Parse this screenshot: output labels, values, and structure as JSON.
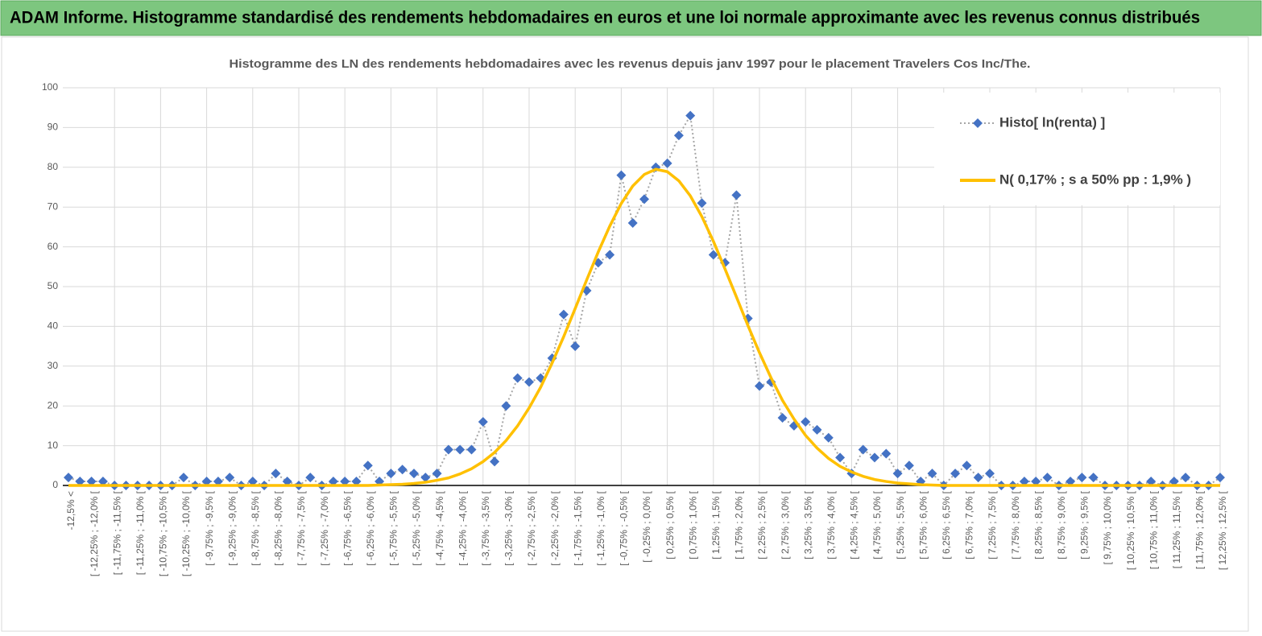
{
  "header": {
    "title": "ADAM Informe. Histogramme standardisé des rendements hebdomadaires en euros et une loi normale approximante avec les revenus connus distribués"
  },
  "chart_data": {
    "type": "line",
    "title": "Histogramme des LN des rendements hebdomadaires avec les revenus depuis janv 1997 pour le placement Travelers Cos Inc/The.",
    "categories": [
      "-12,5% <",
      null,
      "[ -12,25% ; -12,0% [",
      null,
      "[ -11,75% ; -11,5% [",
      null,
      "[ -11,25% ; -11,0% [",
      null,
      "[ -10,75% ; -10,5% [",
      null,
      "[ -10,25% ; -10,0% [",
      null,
      "[ -9,75% ; -9,5% [",
      null,
      "[ -9,25% ; -9,0% [",
      null,
      "[ -8,75% ; -8,5% [",
      null,
      "[ -8,25% ; -8,0% [",
      null,
      "[ -7,75% ; -7,5% [",
      null,
      "[ -7,25% ; -7,0% [",
      null,
      "[ -6,75% ; -6,5% [",
      null,
      "[ -6,25% ; -6,0% [",
      null,
      "[ -5,75% ; -5,5% [",
      null,
      "[ -5,25% ; -5,0% [",
      null,
      "[ -4,75% ; -4,5% [",
      null,
      "[ -4,25% ; -4,0% [",
      null,
      "[ -3,75% ; -3,5% [",
      null,
      "[ -3,25% ; -3,0% [",
      null,
      "[ -2,75% ; -2,5% [",
      null,
      "[ -2,25% ; -2,0% [",
      null,
      "[ -1,75% ; -1,5% [",
      null,
      "[ -1,25% ; -1,0% [",
      null,
      "[ -0,75% ; -0,5% [",
      null,
      "[ -0,25% ; 0,0% [",
      null,
      "[ 0,25% ; 0,5% [",
      null,
      "[ 0,75% ; 1,0% [",
      null,
      "[ 1,25% ; 1,5% [",
      null,
      "[ 1,75% ; 2,0% [",
      null,
      "[ 2,25% ; 2,5% [",
      null,
      "[ 2,75% ; 3,0% [",
      null,
      "[ 3,25% ; 3,5% [",
      null,
      "[ 3,75% ; 4,0% [",
      null,
      "[ 4,25% ; 4,5% [",
      null,
      "[ 4,75% ; 5,0% [",
      null,
      "[ 5,25% ; 5,5% [",
      null,
      "[ 5,75% ; 6,0% [",
      null,
      "[ 6,25% ; 6,5% [",
      null,
      "[ 6,75% ; 7,0% [",
      null,
      "[ 7,25% ; 7,5% [",
      null,
      "[ 7,75% ; 8,0% [",
      null,
      "[ 8,25% ; 8,5% [",
      null,
      "[ 8,75% ; 9,0% [",
      null,
      "[ 9,25% ; 9,5% [",
      null,
      "[ 9,75% ; 10,0% [",
      null,
      "[ 10,25% ; 10,5% [",
      null,
      "[ 10,75% ; 11,0% [",
      null,
      "[ 11,25% ; 11,5% [",
      null,
      "[ 11,75% ; 12,0% [",
      null,
      "[ 12,25% ; 12,5% ["
    ],
    "series": [
      {
        "name": "Histo[ ln(renta) ]",
        "color": "#4472c4",
        "line_color": "#a6a6a6",
        "marker": "diamond",
        "values": [
          2,
          1,
          1,
          1,
          0,
          0,
          0,
          0,
          0,
          0,
          2,
          0,
          1,
          1,
          2,
          0,
          1,
          0,
          3,
          1,
          0,
          2,
          0,
          1,
          1,
          1,
          5,
          1,
          3,
          4,
          3,
          2,
          3,
          9,
          9,
          9,
          16,
          6,
          20,
          27,
          26,
          27,
          32,
          43,
          35,
          49,
          56,
          58,
          78,
          66,
          72,
          80,
          81,
          88,
          93,
          71,
          58,
          56,
          73,
          42,
          25,
          26,
          17,
          15,
          16,
          14,
          12,
          7,
          3,
          9,
          7,
          8,
          3,
          5,
          1,
          3,
          0,
          3,
          5,
          2,
          3,
          0,
          0,
          1,
          1,
          2,
          0,
          1,
          2,
          2,
          0,
          0,
          0,
          0,
          1,
          0,
          1,
          2,
          0,
          0,
          2
        ]
      },
      {
        "name": "N( 0,17% ; s a 50% pp : 1,9% )",
        "color": "#ffc000",
        "marker": "none",
        "values": [
          0,
          0,
          0,
          0,
          0,
          0,
          0,
          0,
          0,
          0,
          0,
          0,
          0,
          0,
          0,
          0,
          0,
          0,
          0,
          0,
          0,
          0,
          0,
          0,
          0,
          0,
          0,
          0.1,
          0.2,
          0.3,
          0.5,
          0.8,
          1.3,
          1.9,
          2.9,
          4.2,
          6.0,
          8.3,
          11.3,
          15.0,
          19.5,
          24.7,
          30.8,
          37.4,
          44.5,
          51.7,
          58.7,
          65.2,
          70.9,
          75.3,
          78.2,
          79.5,
          78.9,
          76.6,
          72.8,
          67.6,
          61.4,
          54.5,
          47.4,
          40.2,
          33.4,
          27.1,
          21.4,
          16.7,
          12.6,
          9.4,
          6.8,
          4.8,
          3.4,
          2.3,
          1.5,
          1.0,
          0.6,
          0.4,
          0.2,
          0.1,
          0,
          0,
          0,
          0,
          0,
          0,
          0,
          0,
          0,
          0,
          0,
          0,
          0,
          0,
          0,
          0,
          0,
          0,
          0,
          0,
          0,
          0,
          0,
          0,
          0
        ]
      }
    ],
    "ylim": [
      0,
      100
    ],
    "yticks": [
      0,
      10,
      20,
      30,
      40,
      50,
      60,
      70,
      80,
      90,
      100
    ],
    "grid": true,
    "legend": "top-right"
  }
}
